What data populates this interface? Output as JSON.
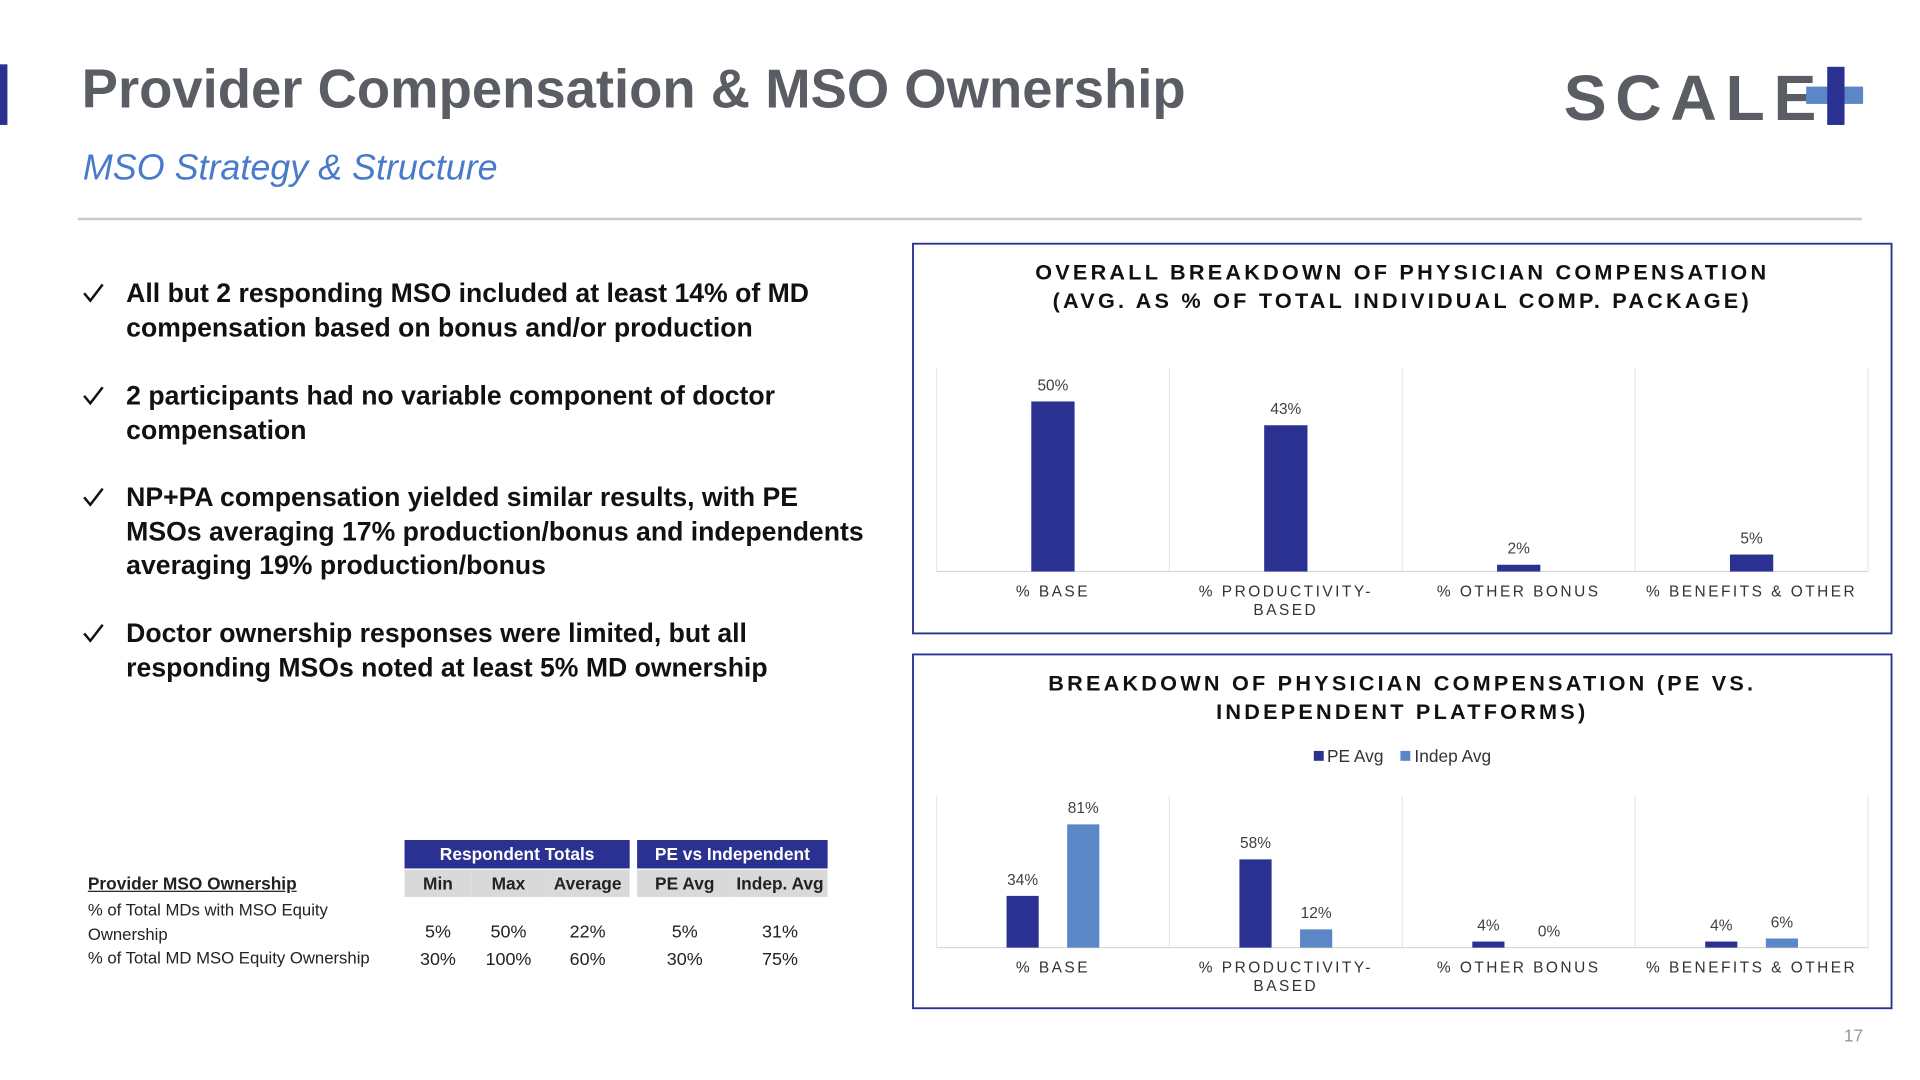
{
  "header": {
    "title": "Provider Compensation & MSO Ownership",
    "subtitle": "MSO Strategy & Structure",
    "logo": "SCALE",
    "page_number": "17"
  },
  "bullets": [
    "All but 2 responding MSO included at least 14% of MD compensation based on bonus and/or production",
    "2 participants had no variable component of doctor compensation",
    "NP+PA compensation yielded similar results, with PE MSOs averaging 17% production/bonus and independents averaging 19% production/bonus",
    "Doctor ownership responses were limited, but all responding MSOs noted at least 5% MD ownership"
  ],
  "table": {
    "group_headers": [
      "Respondent Totals",
      "PE vs Independent"
    ],
    "row_header": "Provider MSO Ownership",
    "columns": [
      "Min",
      "Max",
      "Average",
      "PE Avg",
      "Indep. Avg"
    ],
    "rows": [
      {
        "label": "% of Total MDs with MSO Equity Ownership",
        "values": [
          "5%",
          "50%",
          "22%",
          "5%",
          "31%"
        ]
      },
      {
        "label": "% of Total MD MSO Equity Ownership",
        "values": [
          "30%",
          "100%",
          "60%",
          "30%",
          "75%"
        ]
      }
    ]
  },
  "chart_data": [
    {
      "type": "bar",
      "title": "OVERALL BREAKDOWN OF PHYSICIAN COMPENSATION (AVG. AS % OF TOTAL INDIVIDUAL COMP. PACKAGE)",
      "categories": [
        "% BASE",
        "% PRODUCTIVITY-BASED",
        "% OTHER BONUS",
        "% BENEFITS & OTHER"
      ],
      "values": [
        50,
        43,
        2,
        5
      ],
      "value_labels": [
        "50%",
        "43%",
        "2%",
        "5%"
      ],
      "color": "#2b3190",
      "ylim": [
        0,
        60
      ]
    },
    {
      "type": "bar",
      "title": "BREAKDOWN OF PHYSICIAN COMPENSATION (PE VS. INDEPENDENT PLATFORMS)",
      "categories": [
        "% BASE",
        "% PRODUCTIVITY-BASED",
        "% OTHER BONUS",
        "% BENEFITS & OTHER"
      ],
      "series": [
        {
          "name": "PE Avg",
          "color": "#2b3190",
          "values": [
            34,
            58,
            4,
            4
          ],
          "value_labels": [
            "34%",
            "58%",
            "4%",
            "4%"
          ]
        },
        {
          "name": "Indep Avg",
          "color": "#5b87c6",
          "values": [
            81,
            12,
            0,
            6
          ],
          "value_labels": [
            "81%",
            "12%",
            "0%",
            "6%"
          ]
        }
      ],
      "ylim": [
        0,
        100
      ],
      "legend": "top"
    }
  ]
}
